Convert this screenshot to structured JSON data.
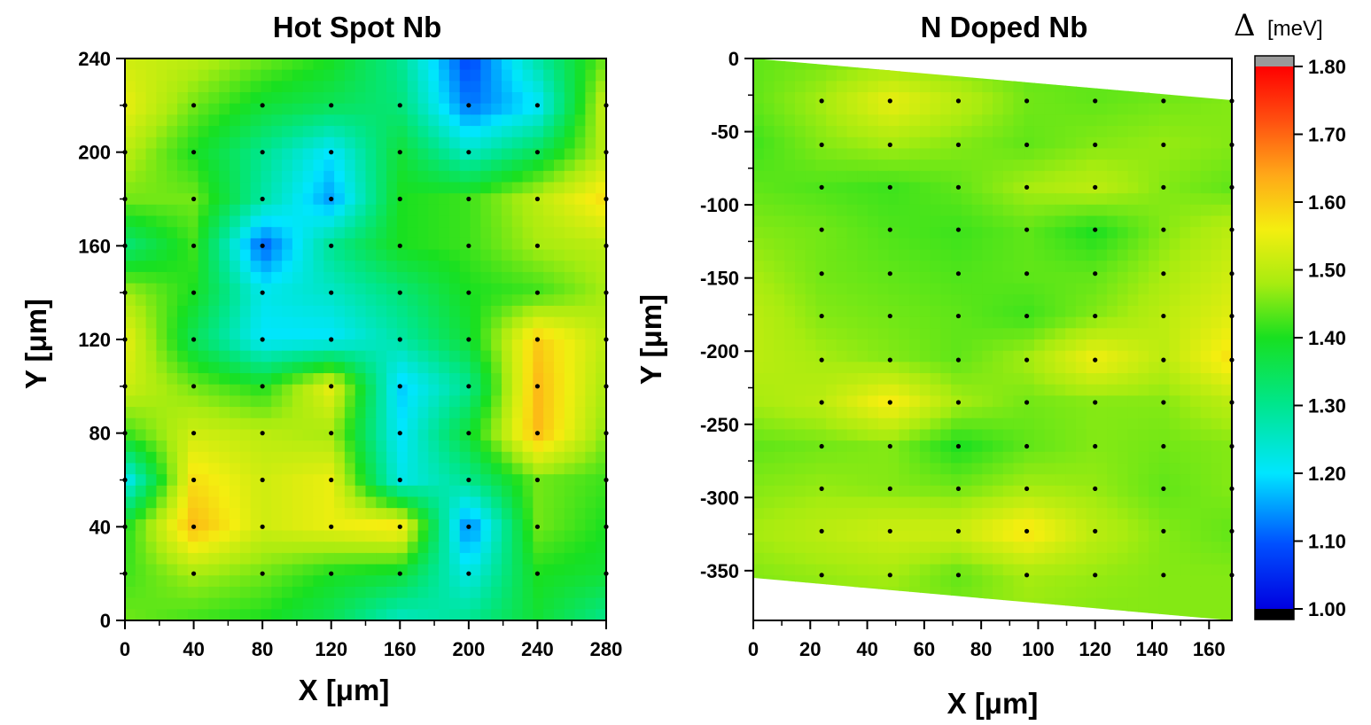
{
  "chart_data": [
    {
      "type": "heatmap",
      "title": "Hot Spot Nb",
      "xlabel": "X [μm]",
      "ylabel": "Y [μm]",
      "xlim": [
        0,
        280
      ],
      "ylim": [
        0,
        240
      ],
      "xticks": [
        "0",
        "40",
        "80",
        "120",
        "160",
        "200",
        "240",
        "280"
      ],
      "yticks": [
        "0",
        "40",
        "80",
        "120",
        "160",
        "200",
        "240"
      ],
      "x": [
        0,
        40,
        80,
        120,
        160,
        200,
        240,
        280
      ],
      "y": [
        240,
        220,
        200,
        180,
        160,
        140,
        120,
        100,
        80,
        60,
        40,
        20,
        0
      ],
      "z": [
        [
          1.52,
          1.5,
          1.45,
          1.4,
          1.3,
          1.08,
          1.28,
          1.45
        ],
        [
          1.55,
          1.45,
          1.38,
          1.35,
          1.32,
          1.12,
          1.2,
          1.52
        ],
        [
          1.5,
          1.4,
          1.3,
          1.2,
          1.38,
          1.25,
          1.35,
          1.5
        ],
        [
          1.45,
          1.45,
          1.28,
          1.15,
          1.4,
          1.42,
          1.5,
          1.58
        ],
        [
          1.32,
          1.42,
          1.1,
          1.3,
          1.4,
          1.42,
          1.48,
          1.5
        ],
        [
          1.48,
          1.4,
          1.22,
          1.25,
          1.32,
          1.4,
          1.42,
          1.48
        ],
        [
          1.55,
          1.35,
          1.2,
          1.2,
          1.28,
          1.38,
          1.6,
          1.5
        ],
        [
          1.52,
          1.45,
          1.4,
          1.55,
          1.18,
          1.3,
          1.62,
          1.48
        ],
        [
          1.42,
          1.52,
          1.5,
          1.48,
          1.2,
          1.38,
          1.62,
          1.46
        ],
        [
          1.2,
          1.58,
          1.52,
          1.55,
          1.22,
          1.3,
          1.45,
          1.42
        ],
        [
          1.4,
          1.62,
          1.52,
          1.55,
          1.58,
          1.12,
          1.45,
          1.4
        ],
        [
          1.42,
          1.48,
          1.45,
          1.4,
          1.38,
          1.22,
          1.4,
          1.38
        ],
        [
          1.45,
          1.42,
          1.4,
          1.35,
          1.25,
          1.3,
          1.38,
          1.3
        ]
      ],
      "points_x": [
        0,
        40,
        80,
        120,
        160,
        200,
        240,
        280
      ],
      "points_y": [
        220,
        200,
        180,
        160,
        140,
        120,
        100,
        80,
        60,
        40,
        20
      ]
    },
    {
      "type": "heatmap",
      "title": "N Doped Nb",
      "xlabel": "X [μm]",
      "ylabel": "Y [μm]",
      "xlim": [
        0,
        168
      ],
      "ylim": [
        -384,
        0
      ],
      "xticks": [
        "0",
        "20",
        "40",
        "60",
        "80",
        "100",
        "120",
        "140",
        "160"
      ],
      "yticks": [
        "0",
        "-50",
        "-100",
        "-150",
        "-200",
        "-250",
        "-300",
        "-350"
      ],
      "x": [
        0,
        24,
        48,
        72,
        96,
        120,
        144,
        168
      ],
      "y": [
        0,
        -29,
        -59,
        -88,
        -117,
        -147,
        -176,
        -206,
        -235,
        -265,
        -294,
        -323,
        -353,
        -382
      ],
      "z": [
        [
          1.44,
          1.45,
          1.46,
          1.45,
          1.44,
          1.44,
          1.43,
          1.44
        ],
        [
          1.44,
          1.48,
          1.55,
          1.5,
          1.45,
          1.44,
          1.45,
          1.46
        ],
        [
          1.42,
          1.46,
          1.48,
          1.46,
          1.44,
          1.46,
          1.47,
          1.46
        ],
        [
          1.44,
          1.43,
          1.42,
          1.44,
          1.48,
          1.5,
          1.46,
          1.44
        ],
        [
          1.46,
          1.45,
          1.43,
          1.42,
          1.44,
          1.4,
          1.46,
          1.5
        ],
        [
          1.48,
          1.45,
          1.44,
          1.43,
          1.44,
          1.44,
          1.48,
          1.52
        ],
        [
          1.5,
          1.46,
          1.45,
          1.44,
          1.42,
          1.46,
          1.5,
          1.54
        ],
        [
          1.5,
          1.48,
          1.46,
          1.44,
          1.48,
          1.56,
          1.5,
          1.58
        ],
        [
          1.48,
          1.5,
          1.57,
          1.48,
          1.45,
          1.46,
          1.46,
          1.5
        ],
        [
          1.44,
          1.45,
          1.46,
          1.4,
          1.44,
          1.46,
          1.45,
          1.46
        ],
        [
          1.46,
          1.47,
          1.46,
          1.45,
          1.48,
          1.47,
          1.44,
          1.46
        ],
        [
          1.48,
          1.5,
          1.52,
          1.52,
          1.58,
          1.5,
          1.46,
          1.44
        ],
        [
          1.46,
          1.47,
          1.48,
          1.44,
          1.48,
          1.47,
          1.46,
          1.46
        ],
        [
          1.45,
          1.46,
          1.46,
          1.46,
          1.47,
          1.46,
          1.46,
          1.46
        ]
      ],
      "points_x": [
        24,
        48,
        72,
        96,
        120,
        144,
        168
      ],
      "points_y": [
        -29,
        -59,
        -88,
        -117,
        -147,
        -176,
        -206,
        -235,
        -265,
        -294,
        -323,
        -353
      ]
    }
  ],
  "colorbar": {
    "symbol": "Δ",
    "unit": "[meV]",
    "min": 1.0,
    "max": 1.8,
    "ticks": [
      "1.00",
      "1.10",
      "1.20",
      "1.30",
      "1.40",
      "1.50",
      "1.60",
      "1.70",
      "1.80"
    ],
    "under_color": "#000000",
    "over_color": "#9a9a9a"
  }
}
